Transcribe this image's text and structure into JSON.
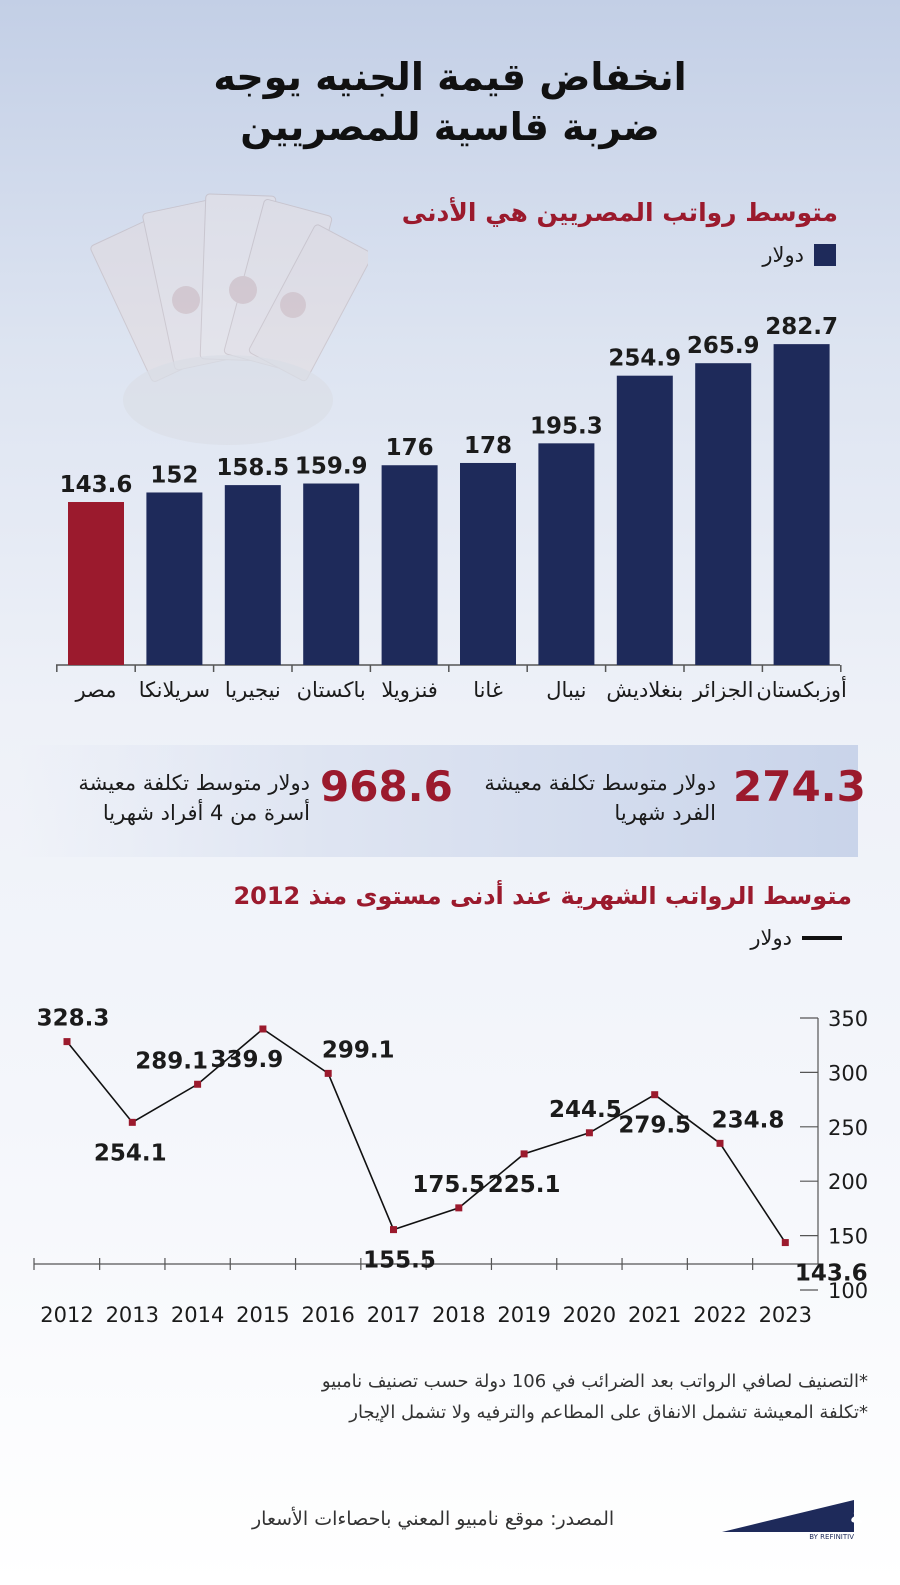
{
  "title_line1": "انخفاض قيمة الجنيه يوجه",
  "title_line2": "ضربة قاسية للمصريين",
  "chart_data": [
    {
      "type": "bar",
      "title": "متوسط رواتب المصريين هي الأدنى",
      "legend": "دولار",
      "categories": [
        "مصر",
        "سريلانكا",
        "نيجيريا",
        "باكستان",
        "فنزويلا",
        "غانا",
        "نيبال",
        "بنغلاديش",
        "الجزائر",
        "أوزبكستان"
      ],
      "series": [
        {
          "name": "دولار",
          "values": [
            143.6,
            152,
            158.5,
            159.9,
            176,
            178,
            195.3,
            254.9,
            265.9,
            282.7
          ]
        }
      ],
      "value_labels": [
        "143.6",
        "152",
        "158.5",
        "159.9",
        "176",
        "178",
        "195.3",
        "254.9",
        "265.9",
        "282.7"
      ],
      "highlight_category": "مصر",
      "colors": {
        "default": "#1e2a5a",
        "highlight": "#9b1a2d"
      }
    },
    {
      "type": "line",
      "title": "متوسط الرواتب الشهرية عند أدنى مستوى منذ 2012",
      "legend": "دولار",
      "x": [
        "2012",
        "2013",
        "2014",
        "2015",
        "2016",
        "2017",
        "2018",
        "2019",
        "2020",
        "2021",
        "2022",
        "2023"
      ],
      "series": [
        {
          "name": "دولار",
          "values": [
            328.3,
            254.1,
            289.1,
            339.9,
            299.1,
            155.5,
            175.5,
            225.1,
            244.5,
            279.5,
            234.8,
            143.6
          ]
        }
      ],
      "value_labels": [
        "328.3",
        "254.1",
        "289.1",
        "339.9",
        "299.1",
        "155.5",
        "175.5",
        "225.1",
        "244.5",
        "279.5",
        "234.8",
        "143.6"
      ],
      "ylim": [
        100,
        350
      ],
      "yticks": [
        "350",
        "300",
        "250",
        "200",
        "150",
        "100"
      ],
      "colors": {
        "line": "#111111",
        "marker": "#9b1a2d"
      }
    }
  ],
  "stats": {
    "individual": {
      "value": "274.3",
      "line1": "دولار متوسط  تكلفة معيشة",
      "line2": "الفرد  شهريا"
    },
    "family": {
      "value": "968.6",
      "line1": "دولار متوسط  تكلفة معيشة",
      "line2": "أسرة من 4 أفراد شهريا"
    }
  },
  "footnotes": [
    "*التصنيف لصافي الرواتب بعد الضرائب في 106 دولة حسب تصنيف نامبيو",
    "*تكلفة المعيشة تشمل الانفاق على المطاعم والترفيه ولا تشمل الإيجار"
  ],
  "source": "المصدر: موقع نامبيو المعني باحصاءات الأسعار",
  "brand": {
    "name": "زاوية",
    "tagline": "BY REFINITIV"
  }
}
